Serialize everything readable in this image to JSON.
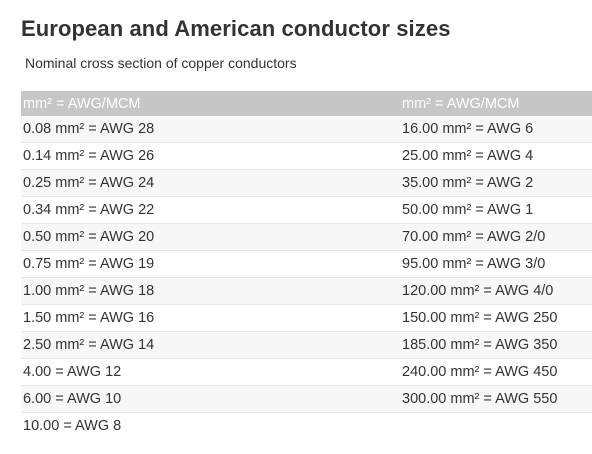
{
  "page": {
    "title": "European and American conductor sizes",
    "subtitle": "Nominal cross section of copper conductors"
  },
  "table": {
    "headers": [
      "mm² = AWG/MCM",
      "mm² = AWG/MCM"
    ],
    "rows": [
      [
        "0.08 mm² = AWG 28",
        "16.00 mm² = AWG 6"
      ],
      [
        "0.14 mm² = AWG 26",
        "25.00 mm² = AWG 4"
      ],
      [
        "0.25 mm² = AWG 24",
        "35.00 mm² = AWG 2"
      ],
      [
        "0.34 mm² = AWG 22",
        "50.00 mm² = AWG 1"
      ],
      [
        "0.50 mm² = AWG 20",
        "70.00 mm² = AWG 2/0"
      ],
      [
        "0.75 mm² = AWG 19",
        "95.00 mm² = AWG 3/0"
      ],
      [
        "1.00 mm² = AWG 18",
        "120.00 mm² = AWG 4/0"
      ],
      [
        "1.50 mm² = AWG 16",
        "150.00 mm² = AWG 250"
      ],
      [
        "2.50 mm² = AWG 14",
        "185.00 mm² = AWG 350"
      ],
      [
        "4.00 = AWG 12",
        "240.00 mm² = AWG 450"
      ],
      [
        "6.00 = AWG 10",
        "300.00 mm² = AWG 550"
      ],
      [
        "10.00 = AWG 8",
        ""
      ]
    ]
  },
  "colors": {
    "header_background": "#c6c6c6",
    "header_text": "#ffffff",
    "stripe": "#f7f7f7",
    "row_divider": "#e6e6e6",
    "text": "#333333"
  }
}
